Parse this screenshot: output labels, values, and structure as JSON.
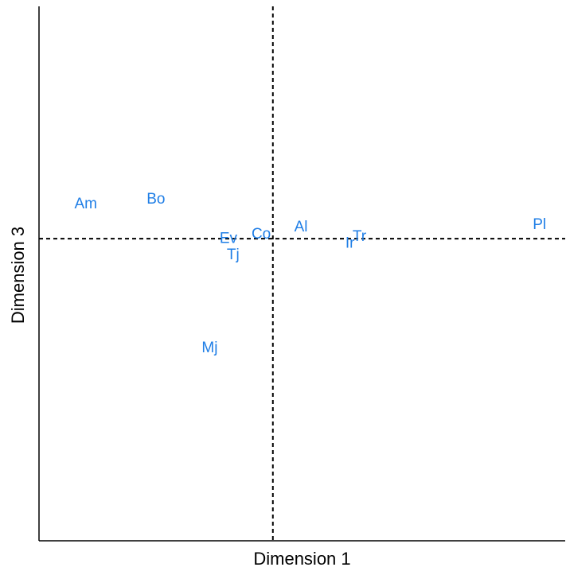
{
  "chart_data": {
    "type": "scatter",
    "title": "",
    "xlabel": "Dimension 1",
    "ylabel": "Dimension 3",
    "xlim": [
      -1.0,
      1.25
    ],
    "ylim": [
      -1.3,
      1.0
    ],
    "reference_lines": {
      "x": 0,
      "y": 0
    },
    "grid": false,
    "label_color": "#1f7ee6",
    "points": [
      {
        "label": "Am",
        "x": -0.8,
        "y": 0.15
      },
      {
        "label": "Bo",
        "x": -0.5,
        "y": 0.17
      },
      {
        "label": "Ev",
        "x": -0.19,
        "y": 0.0
      },
      {
        "label": "Co",
        "x": -0.05,
        "y": 0.02
      },
      {
        "label": "Tj",
        "x": -0.17,
        "y": -0.07
      },
      {
        "label": "Mj",
        "x": -0.27,
        "y": -0.47
      },
      {
        "label": "Al",
        "x": 0.12,
        "y": 0.05
      },
      {
        "label": "Tr",
        "x": 0.37,
        "y": 0.01
      },
      {
        "label": "Ir",
        "x": 0.33,
        "y": -0.02
      },
      {
        "label": "Pl",
        "x": 1.14,
        "y": 0.06
      }
    ]
  }
}
